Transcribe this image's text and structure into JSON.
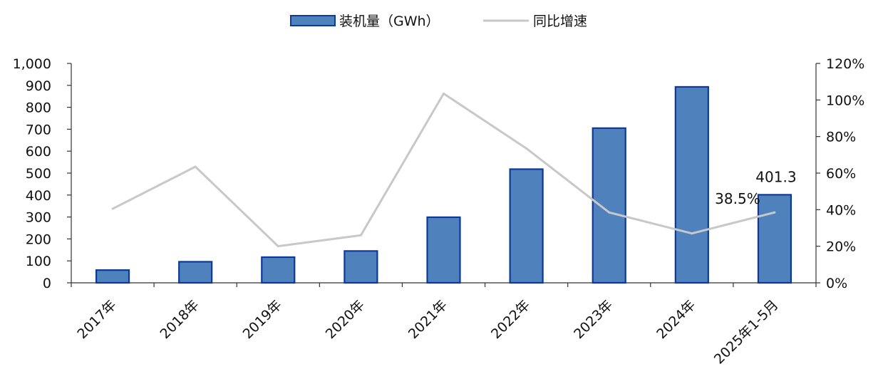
{
  "chart_data": {
    "type": "bar",
    "categories": [
      "2017年",
      "2018年",
      "2019年",
      "2020年",
      "2021年",
      "2022年",
      "2023年",
      "2024年",
      "2025年1-5月"
    ],
    "series": [
      {
        "name": "装机量（GWh）",
        "kind": "bar",
        "axis": "left",
        "values": [
          58,
          96,
          117,
          145,
          299,
          518,
          705,
          893,
          401.3
        ],
        "color": "#4f81bd",
        "border_color": "#0d3a99"
      },
      {
        "name": "同比增速",
        "kind": "line",
        "axis": "right",
        "values": [
          40.5,
          63.5,
          20.0,
          26.0,
          103.5,
          73.5,
          38.5,
          27.0,
          38.5
        ],
        "color": "#c8c8c8"
      }
    ],
    "y_left": {
      "range": [
        0,
        1000
      ],
      "ticks": [
        0,
        100,
        200,
        300,
        400,
        500,
        600,
        700,
        800,
        900,
        1000
      ],
      "tick_labels": [
        "0",
        "100",
        "200",
        "300",
        "400",
        "500",
        "600",
        "700",
        "800",
        "900",
        "1,000"
      ]
    },
    "y_right": {
      "range": [
        0,
        120
      ],
      "ticks": [
        0,
        20,
        40,
        60,
        80,
        100,
        120
      ],
      "tick_labels": [
        "0%",
        "20%",
        "40%",
        "60%",
        "80%",
        "100%",
        "120%"
      ]
    },
    "annotations": [
      {
        "text": "401.3",
        "series": 0,
        "index": 8
      },
      {
        "text": "38.5%",
        "series": 1,
        "index": 8
      }
    ],
    "legend": {
      "placement": "top-center"
    },
    "grid": false
  }
}
